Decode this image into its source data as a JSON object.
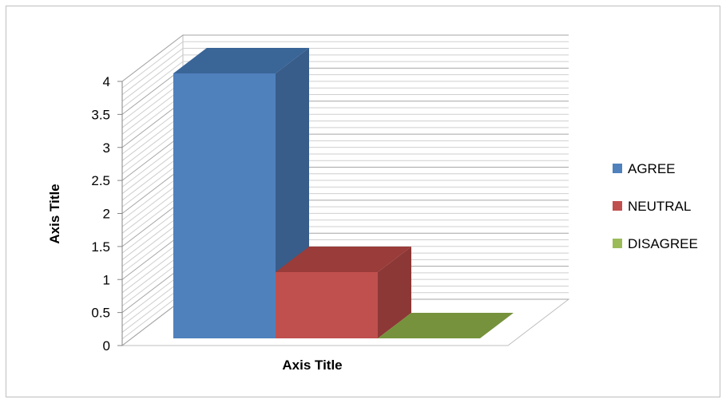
{
  "chart_data": {
    "type": "bar",
    "style": "3d-clustered-column",
    "categories": [
      ""
    ],
    "series": [
      {
        "name": "AGREE",
        "values": [
          4
        ],
        "color": "#4f81bd",
        "side_color": "#385d8a",
        "top_color": "#3a6597"
      },
      {
        "name": "NEUTRAL",
        "values": [
          1
        ],
        "color": "#c0504d",
        "side_color": "#8c3836",
        "top_color": "#9a3c39"
      },
      {
        "name": "DISAGREE",
        "values": [
          0
        ],
        "color": "#9bbb59",
        "side_color": "#71893f",
        "top_color": "#76923c"
      }
    ],
    "title": "",
    "xlabel": "Axis Title",
    "ylabel": "Axis Title",
    "ylim": [
      0,
      4
    ],
    "yticks": [
      "0",
      "0.5",
      "1",
      "1.5",
      "2",
      "2.5",
      "3",
      "3.5",
      "4"
    ],
    "grid": true,
    "legend_position": "right"
  }
}
